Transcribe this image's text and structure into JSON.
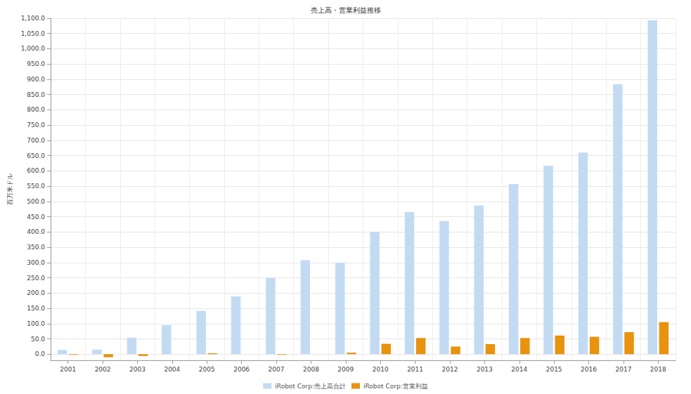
{
  "chart_data": {
    "type": "bar",
    "title": "売上高・営業利益推移",
    "y_label": "百万米ドル",
    "categories": [
      "2001",
      "2002",
      "2003",
      "2004",
      "2005",
      "2006",
      "2007",
      "2008",
      "2009",
      "2010",
      "2011",
      "2012",
      "2013",
      "2014",
      "2015",
      "2016",
      "2017",
      "2018"
    ],
    "series": [
      {
        "name": "iRobot Corp:売上高合計",
        "color": "#c3dbf2",
        "values": [
          14,
          15,
          54,
          95,
          142,
          189,
          249,
          308,
          299,
          401,
          465,
          436,
          487,
          557,
          617,
          660,
          884,
          1093
        ]
      },
      {
        "name": "iRobot Corp:営業利益",
        "color": "#e8920e",
        "values": [
          -2,
          -10,
          -6,
          0,
          3,
          0,
          -2,
          0,
          5,
          34,
          53,
          25,
          33,
          53,
          61,
          57,
          72,
          105
        ]
      }
    ],
    "ylim": [
      -20,
      1100
    ],
    "yticks": [
      {
        "value": 0,
        "label": "0.0"
      },
      {
        "value": 50,
        "label": "50.0"
      },
      {
        "value": 100,
        "label": "100.0"
      },
      {
        "value": 150,
        "label": "150.0"
      },
      {
        "value": 200,
        "label": "200.0"
      },
      {
        "value": 250,
        "label": "250.0"
      },
      {
        "value": 300,
        "label": "300.0"
      },
      {
        "value": 350,
        "label": "350.0"
      },
      {
        "value": 400,
        "label": "400.0"
      },
      {
        "value": 450,
        "label": "450.0"
      },
      {
        "value": 500,
        "label": "500.0"
      },
      {
        "value": 550,
        "label": "550.0"
      },
      {
        "value": 600,
        "label": "600.0"
      },
      {
        "value": 650,
        "label": "650.0"
      },
      {
        "value": 700,
        "label": "700.0"
      },
      {
        "value": 750,
        "label": "750.0"
      },
      {
        "value": 800,
        "label": "800.0"
      },
      {
        "value": 850,
        "label": "850.0"
      },
      {
        "value": 900,
        "label": "900.0"
      },
      {
        "value": 950,
        "label": "950.0"
      },
      {
        "value": 1000,
        "label": "1,000.0"
      },
      {
        "value": 1050,
        "label": "1,050.0"
      },
      {
        "value": 1100,
        "label": "1,100.0"
      }
    ],
    "grid": true,
    "legend": "bottom"
  }
}
